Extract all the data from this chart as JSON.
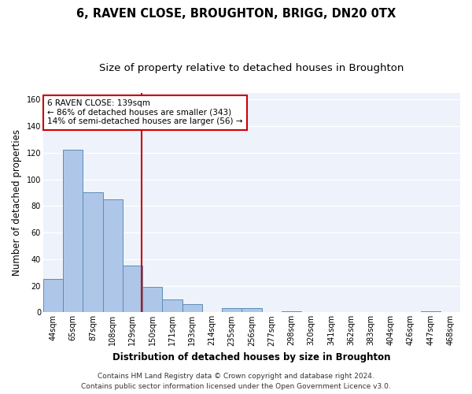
{
  "title": "6, RAVEN CLOSE, BROUGHTON, BRIGG, DN20 0TX",
  "subtitle": "Size of property relative to detached houses in Broughton",
  "xlabel": "Distribution of detached houses by size in Broughton",
  "ylabel": "Number of detached properties",
  "categories": [
    "44sqm",
    "65sqm",
    "87sqm",
    "108sqm",
    "129sqm",
    "150sqm",
    "171sqm",
    "193sqm",
    "214sqm",
    "235sqm",
    "256sqm",
    "277sqm",
    "298sqm",
    "320sqm",
    "341sqm",
    "362sqm",
    "383sqm",
    "404sqm",
    "426sqm",
    "447sqm",
    "468sqm"
  ],
  "values": [
    25,
    122,
    90,
    85,
    35,
    19,
    10,
    6,
    0,
    3,
    3,
    0,
    1,
    0,
    0,
    0,
    0,
    0,
    0,
    1,
    0
  ],
  "bar_color": "#aec6e8",
  "bar_edgecolor": "#5b8db8",
  "vline_x_index": 4.47,
  "vline_color": "#cc0000",
  "annotation_text": "6 RAVEN CLOSE: 139sqm\n← 86% of detached houses are smaller (343)\n14% of semi-detached houses are larger (56) →",
  "annotation_box_edgecolor": "#cc0000",
  "ylim": [
    0,
    165
  ],
  "yticks": [
    0,
    20,
    40,
    60,
    80,
    100,
    120,
    140,
    160
  ],
  "footer_line1": "Contains HM Land Registry data © Crown copyright and database right 2024.",
  "footer_line2": "Contains public sector information licensed under the Open Government Licence v3.0.",
  "background_color": "#edf2fb",
  "grid_color": "#ffffff",
  "title_fontsize": 10.5,
  "subtitle_fontsize": 9.5,
  "axis_label_fontsize": 8.5,
  "tick_fontsize": 7,
  "footer_fontsize": 6.5,
  "ann_fontsize": 7.5
}
